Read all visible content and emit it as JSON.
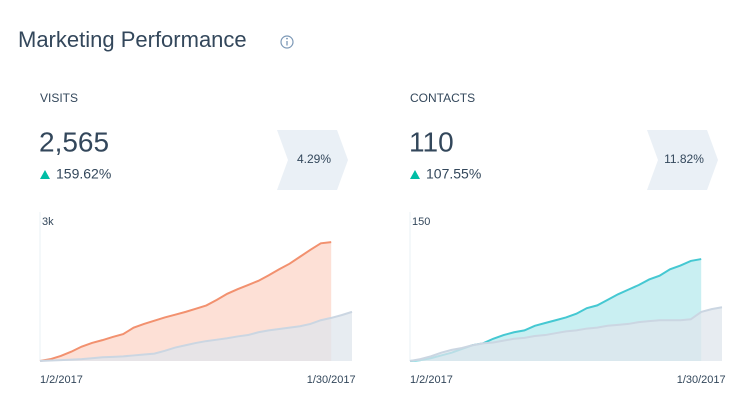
{
  "header": {
    "title": "Marketing Performance"
  },
  "panels": [
    {
      "label": "VISITS",
      "value": "2,565",
      "change": "159.62%",
      "rate": "4.29%",
      "chart_data": {
        "type": "area",
        "categories": [
          "1/2/2017",
          null,
          null,
          null,
          null,
          null,
          null,
          null,
          null,
          null,
          null,
          null,
          null,
          null,
          null,
          null,
          null,
          null,
          null,
          null,
          null,
          null,
          null,
          null,
          null,
          null,
          null,
          null,
          "1/30/2017",
          null,
          null
        ],
        "series": [
          {
            "color": "#f2916f",
            "fill": "#fde0d6",
            "values": [
              0,
              40,
              110,
              200,
              310,
              390,
              450,
              520,
              580,
              720,
              800,
              870,
              940,
              1000,
              1060,
              1130,
              1200,
              1320,
              1450,
              1550,
              1640,
              1730,
              1850,
              1980,
              2100,
              2250,
              2400,
              2540,
              2565,
              null,
              null
            ]
          },
          {
            "color": "#cbd6e2",
            "fill": "#dfe5ec",
            "values": [
              0,
              10,
              20,
              30,
              40,
              60,
              80,
              90,
              100,
              120,
              140,
              160,
              220,
              290,
              340,
              390,
              430,
              460,
              490,
              530,
              560,
              620,
              660,
              690,
              720,
              750,
              800,
              880,
              930,
              990,
              1060
            ]
          }
        ],
        "ylim": [
          0,
          3000
        ],
        "yticks": [
          {
            "value": 3000,
            "label": "3k"
          }
        ]
      }
    },
    {
      "label": "CONTACTS",
      "value": "110",
      "change": "107.55%",
      "rate": "11.82%",
      "chart_data": {
        "type": "area",
        "categories": [
          "1/2/2017",
          null,
          null,
          null,
          null,
          null,
          null,
          null,
          null,
          null,
          null,
          null,
          null,
          null,
          null,
          null,
          null,
          null,
          null,
          null,
          null,
          null,
          null,
          null,
          null,
          null,
          null,
          null,
          "1/30/2017",
          null,
          null
        ],
        "series": [
          {
            "color": "#45c8d2",
            "fill": "#c9eff2",
            "values": [
              0,
              1,
              3,
              6,
              9,
              13,
              17,
              19,
              24,
              28,
              31,
              33,
              38,
              41,
              44,
              47,
              51,
              57,
              60,
              66,
              72,
              77,
              82,
              88,
              92,
              99,
              103,
              108,
              110,
              null,
              null
            ]
          },
          {
            "color": "#cbd6e2",
            "fill": "#dfe5ec",
            "values": [
              0,
              2,
              5,
              9,
              12,
              14,
              17,
              19,
              20,
              22,
              24,
              25,
              27,
              28,
              30,
              32,
              33,
              35,
              36,
              38,
              39,
              40,
              42,
              43,
              44,
              44,
              44,
              45,
              53,
              56,
              58
            ]
          }
        ],
        "ylim": [
          0,
          150
        ],
        "yticks": [
          150
        ]
      }
    }
  ]
}
